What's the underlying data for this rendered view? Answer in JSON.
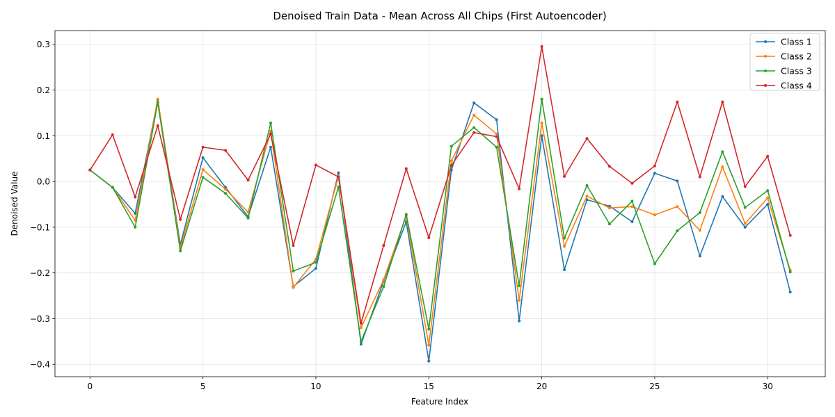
{
  "chart_data": {
    "type": "line",
    "title": "Denoised Train Data - Mean Across All Chips (First Autoencoder)",
    "xlabel": "Feature Index",
    "ylabel": "Denoised Value",
    "xlim": [
      -1.55,
      32.55
    ],
    "ylim": [
      -0.427,
      0.33
    ],
    "xticks": [
      0,
      5,
      10,
      15,
      20,
      25,
      30
    ],
    "yticks": [
      -0.4,
      -0.3,
      -0.2,
      -0.1,
      0.0,
      0.1,
      0.2,
      0.3
    ],
    "ytick_labels": [
      "−0.4",
      "−0.3",
      "−0.2",
      "−0.1",
      "0.0",
      "0.1",
      "0.2",
      "0.3"
    ],
    "grid": true,
    "legend_position": "top-right",
    "x": [
      0,
      1,
      2,
      3,
      4,
      5,
      6,
      7,
      8,
      9,
      10,
      11,
      12,
      13,
      14,
      15,
      16,
      17,
      18,
      19,
      20,
      21,
      22,
      23,
      24,
      25,
      26,
      27,
      28,
      29,
      30,
      31
    ],
    "series": [
      {
        "name": "Class 1",
        "color": "#1f77b4",
        "values": [
          0.025,
          -0.013,
          -0.07,
          0.178,
          -0.138,
          0.052,
          -0.013,
          -0.077,
          0.075,
          -0.23,
          -0.19,
          0.019,
          -0.356,
          -0.218,
          -0.088,
          -0.393,
          0.025,
          0.172,
          0.135,
          -0.305,
          0.1,
          -0.193,
          -0.04,
          -0.054,
          -0.088,
          0.018,
          0.001,
          -0.163,
          -0.033,
          -0.1,
          -0.05,
          -0.242
        ]
      },
      {
        "name": "Class 2",
        "color": "#ff7f0e",
        "values": [
          0.025,
          -0.013,
          -0.085,
          0.18,
          -0.145,
          0.026,
          -0.017,
          -0.067,
          0.11,
          -0.232,
          -0.17,
          0.011,
          -0.32,
          -0.215,
          -0.075,
          -0.358,
          0.045,
          0.145,
          0.104,
          -0.26,
          0.128,
          -0.142,
          -0.032,
          -0.058,
          -0.055,
          -0.073,
          -0.055,
          -0.107,
          0.032,
          -0.092,
          -0.036,
          -0.194
        ]
      },
      {
        "name": "Class 3",
        "color": "#2ca02c",
        "values": [
          0.025,
          -0.013,
          -0.1,
          0.173,
          -0.152,
          0.009,
          -0.026,
          -0.08,
          0.128,
          -0.196,
          -0.177,
          -0.012,
          -0.35,
          -0.23,
          -0.072,
          -0.323,
          0.077,
          0.118,
          0.075,
          -0.228,
          0.18,
          -0.124,
          -0.009,
          -0.093,
          -0.043,
          -0.18,
          -0.108,
          -0.068,
          0.065,
          -0.057,
          -0.02,
          -0.198
        ]
      },
      {
        "name": "Class 4",
        "color": "#d62728",
        "values": [
          0.025,
          0.102,
          -0.034,
          0.122,
          -0.083,
          0.075,
          0.068,
          0.003,
          0.104,
          -0.14,
          0.036,
          0.01,
          -0.31,
          -0.14,
          0.028,
          -0.123,
          0.035,
          0.107,
          0.098,
          -0.016,
          0.295,
          0.011,
          0.094,
          0.033,
          -0.004,
          0.034,
          0.174,
          0.01,
          0.174,
          -0.011,
          0.055,
          -0.118
        ]
      }
    ]
  }
}
